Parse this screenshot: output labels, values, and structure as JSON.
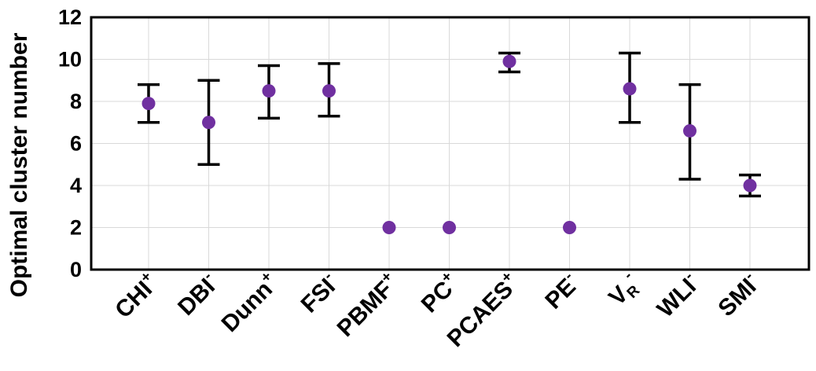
{
  "chart_data": {
    "type": "scatter",
    "ylabel": "Optimal cluster number",
    "xlabel": "",
    "ylim": [
      0,
      12
    ],
    "yticks": [
      0,
      2,
      4,
      6,
      8,
      10,
      12
    ],
    "grid": true,
    "marker_color": "#7030a0",
    "categories": [
      {
        "base": "CHI",
        "sup": "+",
        "sub": ""
      },
      {
        "base": "DBI",
        "sup": "-",
        "sub": ""
      },
      {
        "base": "Dunn",
        "sup": "+",
        "sub": ""
      },
      {
        "base": "FSI",
        "sup": "-",
        "sub": ""
      },
      {
        "base": "PBMF",
        "sup": "+",
        "sub": ""
      },
      {
        "base": "PC",
        "sup": "+",
        "sub": ""
      },
      {
        "base": "PCAES",
        "sup": "+",
        "sub": ""
      },
      {
        "base": "PE",
        "sup": "-",
        "sub": ""
      },
      {
        "base": "V",
        "sup": "-",
        "sub": "R"
      },
      {
        "base": "WLI",
        "sup": "-",
        "sub": ""
      },
      {
        "base": "SMI",
        "sup": "-",
        "sub": ""
      }
    ],
    "series": [
      {
        "values": [
          7.9,
          7.0,
          8.5,
          8.5,
          2.0,
          2.0,
          9.9,
          2.0,
          8.6,
          6.6,
          4.0
        ],
        "err_low": [
          7.0,
          5.0,
          7.2,
          7.3,
          null,
          null,
          9.4,
          null,
          7.0,
          4.3,
          3.5
        ],
        "err_high": [
          8.8,
          9.0,
          9.7,
          9.8,
          null,
          null,
          10.3,
          null,
          10.3,
          8.8,
          4.5
        ]
      }
    ]
  }
}
